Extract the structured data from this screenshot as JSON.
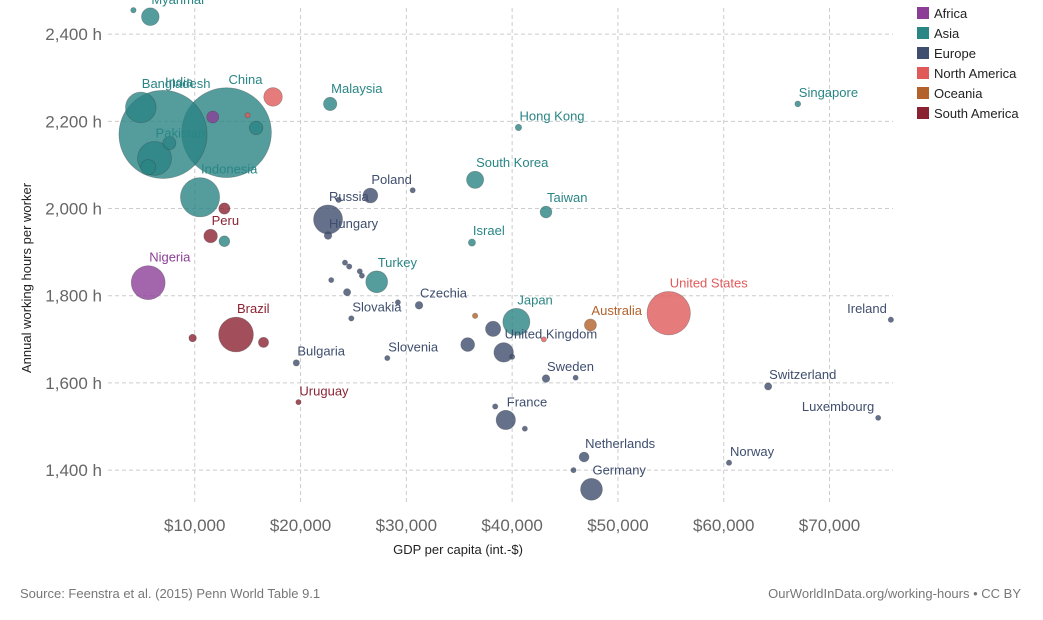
{
  "chart_data": {
    "type": "scatter",
    "title": "",
    "xlabel": "GDP per capita (int.-$)",
    "ylabel": "Annual working hours per worker",
    "xlim": [
      1800,
      76000
    ],
    "ylim": [
      1320,
      2460
    ],
    "x_ticks": [
      10000,
      20000,
      30000,
      40000,
      50000,
      60000,
      70000
    ],
    "x_tick_labels": [
      "$10,000",
      "$20,000",
      "$30,000",
      "$40,000",
      "$50,000",
      "$60,000",
      "$70,000"
    ],
    "y_ticks": [
      1400,
      1600,
      1800,
      2000,
      2200,
      2400
    ],
    "y_tick_labels": [
      "1,400 h",
      "1,600 h",
      "1,800 h",
      "2,000 h",
      "2,200 h",
      "2,400 h"
    ],
    "grid": true,
    "legend_position": "top-right",
    "size_encoding": "population",
    "legend": [
      {
        "name": "Africa",
        "color": "#8c3e96"
      },
      {
        "name": "Asia",
        "color": "#2a8585"
      },
      {
        "name": "Europe",
        "color": "#3f4e6e"
      },
      {
        "name": "North America",
        "color": "#e05a5a"
      },
      {
        "name": "Oceania",
        "color": "#b3622b"
      },
      {
        "name": "South America",
        "color": "#8b2232"
      }
    ],
    "points": [
      {
        "label": "Myanmar",
        "x": 5800,
        "y": 2440,
        "region": "Asia",
        "size": 54
      },
      {
        "label": "",
        "x": 4200,
        "y": 2455,
        "region": "Asia",
        "size": 5
      },
      {
        "label": "Bangladesh",
        "x": 4900,
        "y": 2232,
        "region": "Asia",
        "size": 163
      },
      {
        "label": "China",
        "x": 13000,
        "y": 2174,
        "region": "Asia",
        "size": 1400,
        "label_size": "large"
      },
      {
        "label": "India",
        "x": 7000,
        "y": 2170,
        "region": "Asia",
        "size": 1350,
        "label_size": "large"
      },
      {
        "label": "Pakistan",
        "x": 6200,
        "y": 2115,
        "region": "Asia",
        "size": 200
      },
      {
        "label": "",
        "x": 7600,
        "y": 2150,
        "region": "Asia",
        "size": 30
      },
      {
        "label": "",
        "x": 5600,
        "y": 2095,
        "region": "Asia",
        "size": 40
      },
      {
        "label": "",
        "x": 11700,
        "y": 2210,
        "region": "Africa",
        "size": 25
      },
      {
        "label": "",
        "x": 15800,
        "y": 2185,
        "region": "Asia",
        "size": 32
      },
      {
        "label": "",
        "x": 17400,
        "y": 2256,
        "region": "North America",
        "size": 60
      },
      {
        "label": "",
        "x": 15000,
        "y": 2214,
        "region": "North America",
        "size": 4
      },
      {
        "label": "Malaysia",
        "x": 22800,
        "y": 2240,
        "region": "Asia",
        "size": 31
      },
      {
        "label": "Indonesia",
        "x": 10500,
        "y": 2026,
        "region": "Asia",
        "size": 267
      },
      {
        "label": "",
        "x": 12800,
        "y": 2000,
        "region": "South America",
        "size": 22
      },
      {
        "label": "Peru",
        "x": 11500,
        "y": 1937,
        "region": "South America",
        "size": 32
      },
      {
        "label": "",
        "x": 12800,
        "y": 1925,
        "region": "Asia",
        "size": 20
      },
      {
        "label": "Russia",
        "x": 22600,
        "y": 1975,
        "region": "Europe",
        "size": 146
      },
      {
        "label": "",
        "x": 23600,
        "y": 2020,
        "region": "Europe",
        "size": 5
      },
      {
        "label": "Poland",
        "x": 26600,
        "y": 2030,
        "region": "Europe",
        "size": 38
      },
      {
        "label": "",
        "x": 30600,
        "y": 2042,
        "region": "Europe",
        "size": 4
      },
      {
        "label": "Hungary",
        "x": 22600,
        "y": 1938,
        "region": "Europe",
        "size": 10
      },
      {
        "label": "Nigeria",
        "x": 5600,
        "y": 1830,
        "region": "Africa",
        "size": 200
      },
      {
        "label": "Turkey",
        "x": 27200,
        "y": 1832,
        "region": "Asia",
        "size": 83
      },
      {
        "label": "",
        "x": 24200,
        "y": 1876,
        "region": "Europe",
        "size": 4
      },
      {
        "label": "",
        "x": 24600,
        "y": 1867,
        "region": "Europe",
        "size": 5
      },
      {
        "label": "",
        "x": 25600,
        "y": 1856,
        "region": "Europe",
        "size": 4
      },
      {
        "label": "",
        "x": 25800,
        "y": 1846,
        "region": "Europe",
        "size": 4
      },
      {
        "label": "",
        "x": 22900,
        "y": 1836,
        "region": "Europe",
        "size": 4
      },
      {
        "label": "",
        "x": 24400,
        "y": 1808,
        "region": "Europe",
        "size": 9
      },
      {
        "label": "",
        "x": 29200,
        "y": 1785,
        "region": "Europe",
        "size": 3
      },
      {
        "label": "Slovakia",
        "x": 24800,
        "y": 1748,
        "region": "Europe",
        "size": 5
      },
      {
        "label": "Czechia",
        "x": 31200,
        "y": 1778,
        "region": "Europe",
        "size": 10
      },
      {
        "label": "Brazil",
        "x": 13900,
        "y": 1711,
        "region": "South America",
        "size": 210
      },
      {
        "label": "",
        "x": 16500,
        "y": 1693,
        "region": "South America",
        "size": 18
      },
      {
        "label": "",
        "x": 9800,
        "y": 1703,
        "region": "South America",
        "size": 10
      },
      {
        "label": "Bulgaria",
        "x": 19600,
        "y": 1646,
        "region": "Europe",
        "size": 7
      },
      {
        "label": "Slovenia",
        "x": 28200,
        "y": 1657,
        "region": "Europe",
        "size": 2
      },
      {
        "label": "Israel",
        "x": 36200,
        "y": 1922,
        "region": "Asia",
        "size": 9
      },
      {
        "label": "South Korea",
        "x": 36500,
        "y": 2066,
        "region": "Asia",
        "size": 51
      },
      {
        "label": "Hong Kong",
        "x": 40600,
        "y": 2186,
        "region": "Asia",
        "size": 7
      },
      {
        "label": "Taiwan",
        "x": 43200,
        "y": 1992,
        "region": "Asia",
        "size": 24
      },
      {
        "label": "Singapore",
        "x": 67000,
        "y": 2240,
        "region": "Asia",
        "size": 6
      },
      {
        "label": "Japan",
        "x": 40400,
        "y": 1740,
        "region": "Asia",
        "size": 127
      },
      {
        "label": "",
        "x": 36500,
        "y": 1754,
        "region": "Oceania",
        "size": 5
      },
      {
        "label": "",
        "x": 38200,
        "y": 1724,
        "region": "Europe",
        "size": 40
      },
      {
        "label": "",
        "x": 35800,
        "y": 1688,
        "region": "Europe",
        "size": 33
      },
      {
        "label": "United Kingdom",
        "x": 39200,
        "y": 1670,
        "region": "Europe",
        "size": 66
      },
      {
        "label": "",
        "x": 40000,
        "y": 1660,
        "region": "Europe",
        "size": 4
      },
      {
        "label": "",
        "x": 43000,
        "y": 1700,
        "region": "North America",
        "size": 3
      },
      {
        "label": "Australia",
        "x": 47400,
        "y": 1733,
        "region": "Oceania",
        "size": 25
      },
      {
        "label": "United States",
        "x": 54800,
        "y": 1760,
        "region": "North America",
        "size": 327
      },
      {
        "label": "Ireland",
        "x": 75800,
        "y": 1745,
        "region": "Europe",
        "size": 5
      },
      {
        "label": "Sweden",
        "x": 43200,
        "y": 1610,
        "region": "Europe",
        "size": 10
      },
      {
        "label": "",
        "x": 46000,
        "y": 1612,
        "region": "Europe",
        "size": 3
      },
      {
        "label": "Switzerland",
        "x": 64200,
        "y": 1592,
        "region": "Europe",
        "size": 9
      },
      {
        "label": "Uruguay",
        "x": 19800,
        "y": 1556,
        "region": "South America",
        "size": 3
      },
      {
        "label": "France",
        "x": 39400,
        "y": 1515,
        "region": "Europe",
        "size": 65
      },
      {
        "label": "",
        "x": 38400,
        "y": 1546,
        "region": "Europe",
        "size": 5
      },
      {
        "label": "",
        "x": 41200,
        "y": 1495,
        "region": "Europe",
        "size": 3
      },
      {
        "label": "Luxembourg",
        "x": 74600,
        "y": 1520,
        "region": "Europe",
        "size": 1
      },
      {
        "label": "Netherlands",
        "x": 46800,
        "y": 1430,
        "region": "Europe",
        "size": 17
      },
      {
        "label": "",
        "x": 45800,
        "y": 1400,
        "region": "Europe",
        "size": 3
      },
      {
        "label": "Norway",
        "x": 60500,
        "y": 1417,
        "region": "Europe",
        "size": 5
      },
      {
        "label": "Germany",
        "x": 47500,
        "y": 1356,
        "region": "Europe",
        "size": 83
      }
    ]
  },
  "footer": {
    "source": "Source: Feenstra et al. (2015) Penn World Table 9.1",
    "credit": "OurWorldInData.org/working-hours • CC BY"
  }
}
